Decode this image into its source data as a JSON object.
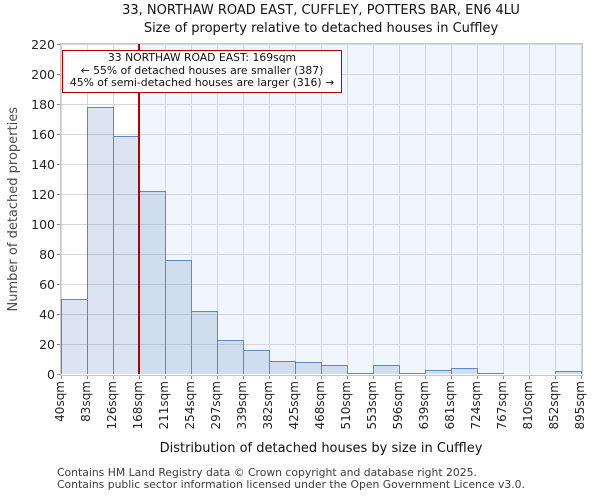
{
  "title": "33, NORTHAW ROAD EAST, CUFFLEY, POTTERS BAR, EN6 4LU",
  "subtitle": "Size of property relative to detached houses in Cuffley",
  "annotation": {
    "line1": "33 NORTHAW ROAD EAST: 169sqm",
    "line2": "← 55% of detached houses are smaller (387)",
    "line3": "45% of semi-detached houses are larger (316) →"
  },
  "chart_data": {
    "type": "bar",
    "title": "33, NORTHAW ROAD EAST, CUFFLEY, POTTERS BAR, EN6 4LU",
    "subtitle": "Size of property relative to detached houses in Cuffley",
    "xlabel": "Distribution of detached houses by size in Cuffley",
    "ylabel": "Number of detached properties",
    "x_tick_labels": [
      "40sqm",
      "83sqm",
      "126sqm",
      "168sqm",
      "211sqm",
      "254sqm",
      "297sqm",
      "339sqm",
      "382sqm",
      "425sqm",
      "468sqm",
      "510sqm",
      "553sqm",
      "596sqm",
      "639sqm",
      "681sqm",
      "724sqm",
      "767sqm",
      "810sqm",
      "852sqm",
      "895sqm"
    ],
    "bin_edges_sqm": [
      40,
      83,
      126,
      168,
      211,
      254,
      297,
      339,
      382,
      425,
      468,
      510,
      553,
      596,
      639,
      681,
      724,
      767,
      810,
      852,
      895
    ],
    "values": [
      50,
      178,
      159,
      122,
      76,
      42,
      23,
      16,
      9,
      8,
      6,
      1,
      6,
      1,
      3,
      4,
      1,
      0,
      0,
      2
    ],
    "ylim": [
      0,
      220
    ],
    "ytick_step": 20,
    "grid": true,
    "marker_value_sqm": 169,
    "smaller_pct": 55,
    "smaller_count": 387,
    "larger_pct": 45,
    "larger_count": 316,
    "colors": {
      "bar_fill_rgba": "rgba(91,138,197,0.22)",
      "bar_border": "#5b8ac2",
      "marker_line": "#b40000",
      "annotation_border": "#b40000",
      "grid": "#d4d6da",
      "shade_right_of_marker": "#f1f5fc"
    }
  },
  "footer": {
    "line1": "Contains HM Land Registry data © Crown copyright and database right 2025.",
    "line2": "Contains public sector information licensed under the Open Government Licence v3.0."
  }
}
